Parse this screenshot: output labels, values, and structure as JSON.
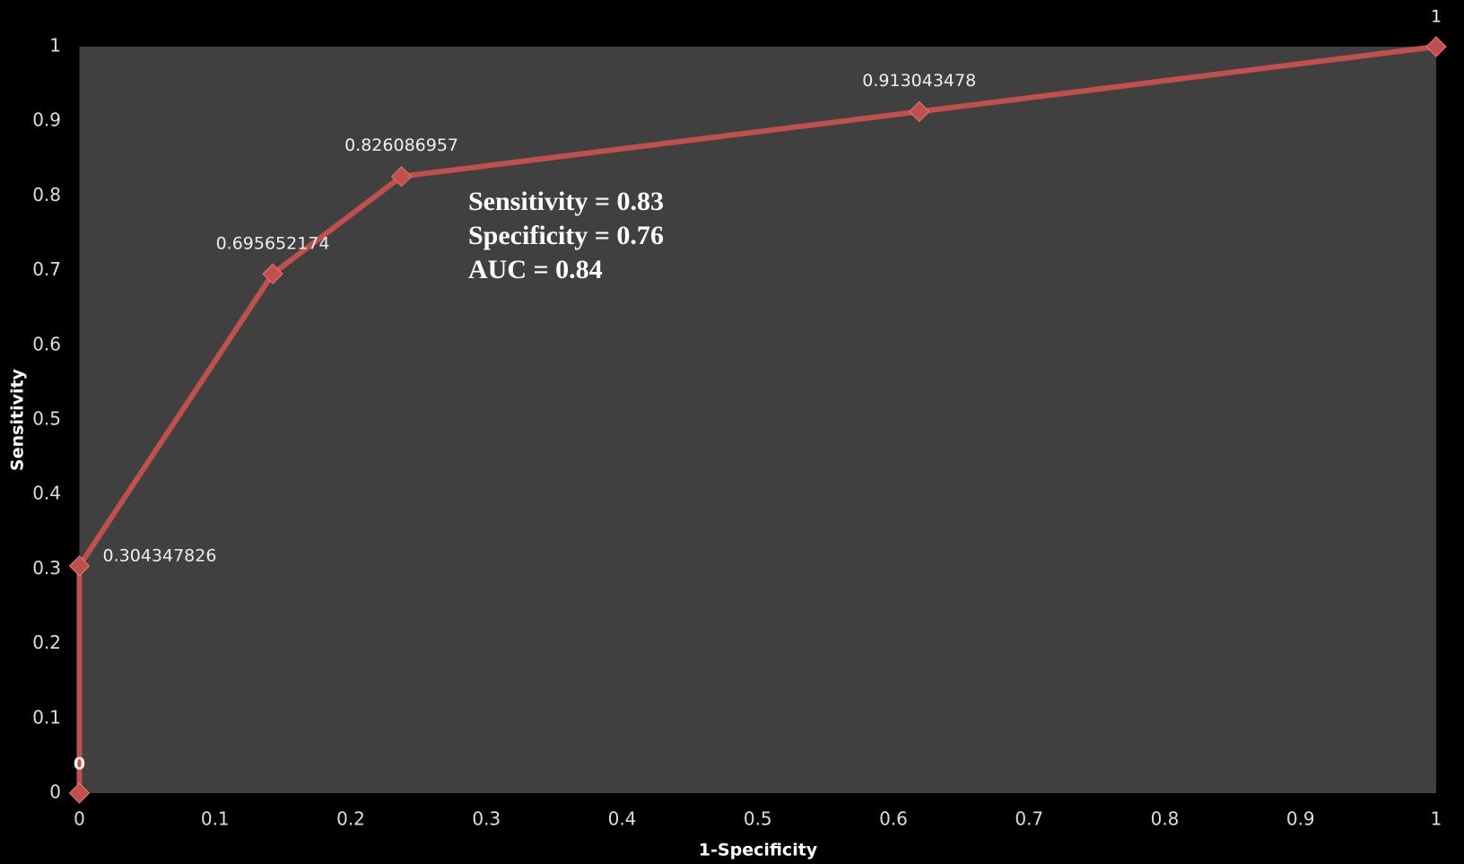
{
  "chart_data": {
    "type": "line",
    "x_label": "1-Specificity",
    "y_label": "Sensitivity",
    "annotations": [
      "Sensitivity = 0.83",
      "Specificity = 0.76",
      "AUC = 0.84"
    ],
    "series": [
      {
        "color": "#c0504d",
        "x": [
          0,
          0,
          0.1425,
          0.2374,
          0.619,
          1
        ],
        "values": [
          0,
          0.304347826,
          0.695652174,
          0.826086957,
          0.913043478,
          1
        ]
      }
    ],
    "xlim": [
      0,
      1
    ],
    "ylim": [
      0,
      1
    ],
    "xticks": [
      0,
      0.1,
      0.2,
      0.3,
      0.4,
      0.5,
      0.6,
      0.7,
      0.8,
      0.9,
      1
    ],
    "yticks": [
      0,
      0.1,
      0.2,
      0.3,
      0.4,
      0.5,
      0.6,
      0.7,
      0.8,
      0.9,
      1
    ],
    "marker": "diamond",
    "grid": false
  }
}
